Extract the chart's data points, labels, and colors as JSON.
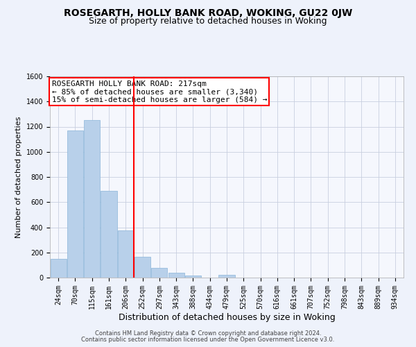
{
  "title1": "ROSEGARTH, HOLLY BANK ROAD, WOKING, GU22 0JW",
  "title2": "Size of property relative to detached houses in Woking",
  "xlabel": "Distribution of detached houses by size in Woking",
  "ylabel": "Number of detached properties",
  "categories": [
    "24sqm",
    "70sqm",
    "115sqm",
    "161sqm",
    "206sqm",
    "252sqm",
    "297sqm",
    "343sqm",
    "388sqm",
    "434sqm",
    "479sqm",
    "525sqm",
    "570sqm",
    "616sqm",
    "661sqm",
    "707sqm",
    "752sqm",
    "798sqm",
    "843sqm",
    "889sqm",
    "934sqm"
  ],
  "values": [
    147,
    1170,
    1255,
    690,
    375,
    168,
    80,
    38,
    18,
    0,
    20,
    0,
    0,
    0,
    0,
    0,
    0,
    0,
    0,
    0,
    0
  ],
  "bar_color": "#b8d0ea",
  "bar_edge_color": "#8ab4d8",
  "property_line_x": 4.5,
  "annotation_line1": "ROSEGARTH HOLLY BANK ROAD: 217sqm",
  "annotation_line2": "← 85% of detached houses are smaller (3,340)",
  "annotation_line3": "15% of semi-detached houses are larger (584) →",
  "annotation_box_color": "white",
  "annotation_box_edge": "red",
  "line_color": "red",
  "footer1": "Contains HM Land Registry data © Crown copyright and database right 2024.",
  "footer2": "Contains public sector information licensed under the Open Government Licence v3.0.",
  "ylim": [
    0,
    1600
  ],
  "yticks": [
    0,
    200,
    400,
    600,
    800,
    1000,
    1200,
    1400,
    1600
  ],
  "bg_color": "#eef2fb",
  "plot_bg_color": "#f5f7fd",
  "grid_color": "#c8cfe0",
  "title1_fontsize": 10,
  "title2_fontsize": 9,
  "xlabel_fontsize": 9,
  "ylabel_fontsize": 8,
  "tick_fontsize": 7,
  "annot_fontsize": 8,
  "footer_fontsize": 6
}
